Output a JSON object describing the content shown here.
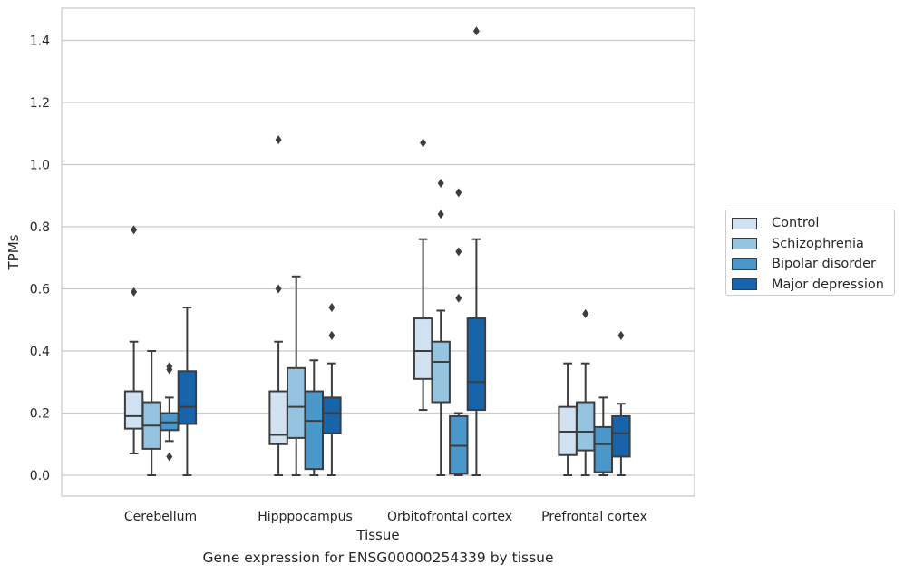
{
  "caption": "Gene expression for ENSG00000254339 by tissue",
  "legend": {
    "items": [
      {
        "label": "Control",
        "color": "#d0e1f2"
      },
      {
        "label": "Schizophrenia",
        "color": "#94c4df"
      },
      {
        "label": "Bipolar disorder",
        "color": "#4a98c9"
      },
      {
        "label": "Major depression",
        "color": "#1764ab"
      }
    ]
  },
  "chart_data": {
    "type": "box",
    "xlabel": "Tissue",
    "ylabel": "TPMs",
    "ylim": [
      -0.07,
      1.5
    ],
    "yticks": [
      "0.0",
      "0.2",
      "0.4",
      "0.6",
      "0.8",
      "1.0",
      "1.2",
      "1.4"
    ],
    "grid": true,
    "legend_position": "right",
    "categories": [
      "Cerebellum",
      "Hipppocampus",
      "Orbitofrontal cortex",
      "Prefrontal cortex"
    ],
    "series": [
      {
        "name": "Control",
        "color": "#d0e1f2",
        "boxes": [
          {
            "whislo": 0.07,
            "q1": 0.15,
            "med": 0.19,
            "q3": 0.27,
            "whishi": 0.43,
            "fliers": [
              0.59,
              0.79
            ]
          },
          {
            "whislo": 0.0,
            "q1": 0.1,
            "med": 0.13,
            "q3": 0.27,
            "whishi": 0.43,
            "fliers": [
              0.6,
              1.08
            ]
          },
          {
            "whislo": 0.21,
            "q1": 0.31,
            "med": 0.4,
            "q3": 0.505,
            "whishi": 0.76,
            "fliers": [
              1.07
            ]
          },
          {
            "whislo": 0.0,
            "q1": 0.065,
            "med": 0.14,
            "q3": 0.22,
            "whishi": 0.36,
            "fliers": []
          }
        ]
      },
      {
        "name": "Schizophrenia",
        "color": "#94c4df",
        "boxes": [
          {
            "whislo": 0.0,
            "q1": 0.085,
            "med": 0.16,
            "q3": 0.235,
            "whishi": 0.4,
            "fliers": []
          },
          {
            "whislo": 0.0,
            "q1": 0.12,
            "med": 0.22,
            "q3": 0.345,
            "whishi": 0.64,
            "fliers": []
          },
          {
            "whislo": 0.0,
            "q1": 0.235,
            "med": 0.365,
            "q3": 0.43,
            "whishi": 0.53,
            "fliers": [
              0.84,
              0.94
            ]
          },
          {
            "whislo": 0.0,
            "q1": 0.08,
            "med": 0.14,
            "q3": 0.235,
            "whishi": 0.36,
            "fliers": [
              0.52
            ]
          }
        ]
      },
      {
        "name": "Bipolar disorder",
        "color": "#4a98c9",
        "boxes": [
          {
            "whislo": 0.11,
            "q1": 0.145,
            "med": 0.17,
            "q3": 0.2,
            "whishi": 0.25,
            "fliers": [
              0.06,
              0.34,
              0.35
            ]
          },
          {
            "whislo": 0.0,
            "q1": 0.02,
            "med": 0.175,
            "q3": 0.27,
            "whishi": 0.37,
            "fliers": []
          },
          {
            "whislo": 0.0,
            "q1": 0.005,
            "med": 0.095,
            "q3": 0.19,
            "whishi": 0.2,
            "fliers": [
              0.57,
              0.72,
              0.91
            ]
          },
          {
            "whislo": 0.0,
            "q1": 0.01,
            "med": 0.1,
            "q3": 0.155,
            "whishi": 0.25,
            "fliers": []
          }
        ]
      },
      {
        "name": "Major depression",
        "color": "#1764ab",
        "boxes": [
          {
            "whislo": 0.0,
            "q1": 0.165,
            "med": 0.22,
            "q3": 0.335,
            "whishi": 0.54,
            "fliers": []
          },
          {
            "whislo": 0.0,
            "q1": 0.135,
            "med": 0.2,
            "q3": 0.25,
            "whishi": 0.36,
            "fliers": [
              0.45,
              0.54
            ]
          },
          {
            "whislo": 0.0,
            "q1": 0.21,
            "med": 0.3,
            "q3": 0.505,
            "whishi": 0.76,
            "fliers": [
              1.43
            ]
          },
          {
            "whislo": 0.0,
            "q1": 0.06,
            "med": 0.135,
            "q3": 0.19,
            "whishi": 0.23,
            "fliers": [
              0.45
            ]
          }
        ]
      }
    ]
  }
}
